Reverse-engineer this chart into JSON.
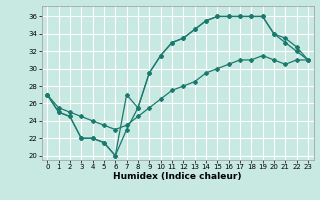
{
  "xlabel": "Humidex (Indice chaleur)",
  "bg_color": "#c8e8e2",
  "grid_color": "#ffffff",
  "line_color": "#1a7a6e",
  "xlim": [
    -0.5,
    23.5
  ],
  "ylim": [
    19.5,
    37.2
  ],
  "xticks": [
    0,
    1,
    2,
    3,
    4,
    5,
    6,
    7,
    8,
    9,
    10,
    11,
    12,
    13,
    14,
    15,
    16,
    17,
    18,
    19,
    20,
    21,
    22,
    23
  ],
  "yticks": [
    20,
    22,
    24,
    26,
    28,
    30,
    32,
    34,
    36
  ],
  "line1": [
    [
      0,
      27
    ],
    [
      1,
      25
    ],
    [
      2,
      24.5
    ],
    [
      3,
      22
    ],
    [
      4,
      22
    ],
    [
      5,
      21.5
    ],
    [
      6,
      20
    ],
    [
      7,
      23
    ],
    [
      8,
      25.5
    ],
    [
      9,
      29.5
    ],
    [
      10,
      31.5
    ],
    [
      11,
      33
    ],
    [
      12,
      33.5
    ],
    [
      13,
      34.5
    ],
    [
      14,
      35.5
    ],
    [
      15,
      36
    ],
    [
      16,
      36
    ],
    [
      17,
      36
    ],
    [
      18,
      36
    ],
    [
      19,
      36
    ],
    [
      20,
      34
    ],
    [
      21,
      33
    ],
    [
      22,
      32
    ],
    [
      23,
      31
    ]
  ],
  "line2": [
    [
      0,
      27
    ],
    [
      1,
      25
    ],
    [
      2,
      24.5
    ],
    [
      3,
      22
    ],
    [
      4,
      22
    ],
    [
      5,
      21.5
    ],
    [
      6,
      20
    ],
    [
      7,
      27
    ],
    [
      8,
      25.5
    ],
    [
      9,
      29.5
    ],
    [
      10,
      31.5
    ],
    [
      11,
      33
    ],
    [
      12,
      33.5
    ],
    [
      13,
      34.5
    ],
    [
      14,
      35.5
    ],
    [
      15,
      36
    ],
    [
      16,
      36
    ],
    [
      17,
      36
    ],
    [
      18,
      36
    ],
    [
      19,
      36
    ],
    [
      20,
      34
    ],
    [
      21,
      33.5
    ],
    [
      22,
      32.5
    ],
    [
      23,
      31
    ]
  ],
  "line3": [
    [
      0,
      27
    ],
    [
      1,
      25.5
    ],
    [
      2,
      25
    ],
    [
      3,
      24.5
    ],
    [
      4,
      24
    ],
    [
      5,
      23.5
    ],
    [
      6,
      23
    ],
    [
      7,
      23.5
    ],
    [
      8,
      24.5
    ],
    [
      9,
      25.5
    ],
    [
      10,
      26.5
    ],
    [
      11,
      27.5
    ],
    [
      12,
      28
    ],
    [
      13,
      28.5
    ],
    [
      14,
      29.5
    ],
    [
      15,
      30
    ],
    [
      16,
      30.5
    ],
    [
      17,
      31
    ],
    [
      18,
      31
    ],
    [
      19,
      31.5
    ],
    [
      20,
      31
    ],
    [
      21,
      30.5
    ],
    [
      22,
      31
    ],
    [
      23,
      31
    ]
  ]
}
